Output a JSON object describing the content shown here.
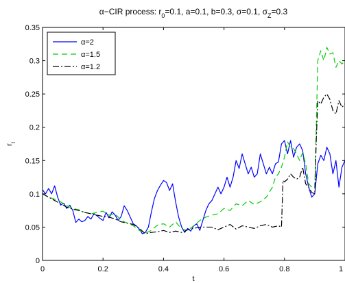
{
  "chart_data": {
    "type": "line",
    "title_parts": [
      {
        "t": "α−CIR process: r",
        "sub": false
      },
      {
        "t": "0",
        "sub": true
      },
      {
        "t": "=0.1, a=0.1, b=0.3, σ=0.1, σ",
        "sub": false
      },
      {
        "t": "Z",
        "sub": true
      },
      {
        "t": "=0.3",
        "sub": false
      }
    ],
    "xlabel": "t",
    "ylabel_main": "r",
    "ylabel_sub": "t",
    "xlim": [
      0,
      1
    ],
    "ylim": [
      0,
      0.35
    ],
    "x_ticks": [
      0,
      0.2,
      0.4,
      0.6,
      0.8,
      1
    ],
    "x_tick_labels": [
      "0",
      "0.2",
      "0.4",
      "0.6",
      "0.8",
      "1"
    ],
    "y_ticks": [
      0,
      0.05,
      0.1,
      0.15,
      0.2,
      0.25,
      0.3,
      0.35
    ],
    "y_tick_labels": [
      "0",
      "0.05",
      "0.1",
      "0.15",
      "0.2",
      "0.25",
      "0.3",
      "0.35"
    ],
    "grid": false,
    "legend_position": "top-left",
    "series": [
      {
        "name": "α=2",
        "color": "#0000ff",
        "dash": "solid",
        "points": [
          [
            0,
            0.106
          ],
          [
            0.01,
            0.1
          ],
          [
            0.02,
            0.108
          ],
          [
            0.03,
            0.1
          ],
          [
            0.04,
            0.112
          ],
          [
            0.05,
            0.095
          ],
          [
            0.06,
            0.083
          ],
          [
            0.07,
            0.086
          ],
          [
            0.08,
            0.078
          ],
          [
            0.09,
            0.083
          ],
          [
            0.1,
            0.075
          ],
          [
            0.11,
            0.057
          ],
          [
            0.12,
            0.062
          ],
          [
            0.13,
            0.058
          ],
          [
            0.14,
            0.06
          ],
          [
            0.15,
            0.066
          ],
          [
            0.16,
            0.062
          ],
          [
            0.17,
            0.07
          ],
          [
            0.18,
            0.067
          ],
          [
            0.19,
            0.063
          ],
          [
            0.2,
            0.06
          ],
          [
            0.21,
            0.072
          ],
          [
            0.22,
            0.064
          ],
          [
            0.23,
            0.073
          ],
          [
            0.24,
            0.068
          ],
          [
            0.25,
            0.06
          ],
          [
            0.26,
            0.066
          ],
          [
            0.27,
            0.082
          ],
          [
            0.28,
            0.075
          ],
          [
            0.29,
            0.065
          ],
          [
            0.3,
            0.055
          ],
          [
            0.31,
            0.052
          ],
          [
            0.32,
            0.047
          ],
          [
            0.33,
            0.04
          ],
          [
            0.34,
            0.042
          ],
          [
            0.35,
            0.05
          ],
          [
            0.36,
            0.073
          ],
          [
            0.37,
            0.093
          ],
          [
            0.38,
            0.105
          ],
          [
            0.39,
            0.113
          ],
          [
            0.4,
            0.12
          ],
          [
            0.41,
            0.117
          ],
          [
            0.42,
            0.105
          ],
          [
            0.43,
            0.115
          ],
          [
            0.44,
            0.088
          ],
          [
            0.45,
            0.065
          ],
          [
            0.46,
            0.05
          ],
          [
            0.47,
            0.042
          ],
          [
            0.48,
            0.048
          ],
          [
            0.49,
            0.044
          ],
          [
            0.5,
            0.052
          ],
          [
            0.51,
            0.055
          ],
          [
            0.52,
            0.045
          ],
          [
            0.53,
            0.06
          ],
          [
            0.54,
            0.075
          ],
          [
            0.55,
            0.085
          ],
          [
            0.56,
            0.09
          ],
          [
            0.57,
            0.1
          ],
          [
            0.58,
            0.11
          ],
          [
            0.59,
            0.1
          ],
          [
            0.6,
            0.11
          ],
          [
            0.61,
            0.125
          ],
          [
            0.62,
            0.11
          ],
          [
            0.63,
            0.125
          ],
          [
            0.64,
            0.15
          ],
          [
            0.65,
            0.138
          ],
          [
            0.66,
            0.16
          ],
          [
            0.67,
            0.145
          ],
          [
            0.68,
            0.13
          ],
          [
            0.69,
            0.14
          ],
          [
            0.7,
            0.125
          ],
          [
            0.71,
            0.13
          ],
          [
            0.72,
            0.16
          ],
          [
            0.73,
            0.145
          ],
          [
            0.74,
            0.13
          ],
          [
            0.75,
            0.14
          ],
          [
            0.76,
            0.13
          ],
          [
            0.77,
            0.145
          ],
          [
            0.78,
            0.148
          ],
          [
            0.79,
            0.175
          ],
          [
            0.8,
            0.18
          ],
          [
            0.81,
            0.16
          ],
          [
            0.82,
            0.18
          ],
          [
            0.83,
            0.155
          ],
          [
            0.84,
            0.17
          ],
          [
            0.85,
            0.175
          ],
          [
            0.86,
            0.165
          ],
          [
            0.87,
            0.13
          ],
          [
            0.88,
            0.11
          ],
          [
            0.89,
            0.095
          ],
          [
            0.9,
            0.1
          ],
          [
            0.91,
            0.145
          ],
          [
            0.92,
            0.158
          ],
          [
            0.93,
            0.15
          ],
          [
            0.94,
            0.17
          ],
          [
            0.95,
            0.16
          ],
          [
            0.96,
            0.13
          ],
          [
            0.97,
            0.15
          ],
          [
            0.98,
            0.11
          ],
          [
            0.99,
            0.14
          ],
          [
            1,
            0.15
          ]
        ]
      },
      {
        "name": "α=1.5",
        "color": "#00cc00",
        "dash": "8,5",
        "points": [
          [
            0,
            0.1
          ],
          [
            0.02,
            0.095
          ],
          [
            0.04,
            0.092
          ],
          [
            0.06,
            0.088
          ],
          [
            0.08,
            0.082
          ],
          [
            0.1,
            0.078
          ],
          [
            0.12,
            0.076
          ],
          [
            0.14,
            0.072
          ],
          [
            0.16,
            0.07
          ],
          [
            0.18,
            0.072
          ],
          [
            0.2,
            0.074
          ],
          [
            0.22,
            0.068
          ],
          [
            0.24,
            0.07
          ],
          [
            0.26,
            0.06
          ],
          [
            0.28,
            0.056
          ],
          [
            0.3,
            0.052
          ],
          [
            0.32,
            0.045
          ],
          [
            0.34,
            0.041
          ],
          [
            0.36,
            0.045
          ],
          [
            0.38,
            0.053
          ],
          [
            0.4,
            0.055
          ],
          [
            0.42,
            0.05
          ],
          [
            0.44,
            0.058
          ],
          [
            0.46,
            0.047
          ],
          [
            0.48,
            0.045
          ],
          [
            0.5,
            0.052
          ],
          [
            0.52,
            0.06
          ],
          [
            0.54,
            0.065
          ],
          [
            0.56,
            0.068
          ],
          [
            0.58,
            0.07
          ],
          [
            0.6,
            0.078
          ],
          [
            0.62,
            0.075
          ],
          [
            0.64,
            0.085
          ],
          [
            0.66,
            0.082
          ],
          [
            0.68,
            0.09
          ],
          [
            0.7,
            0.084
          ],
          [
            0.72,
            0.088
          ],
          [
            0.74,
            0.095
          ],
          [
            0.76,
            0.11
          ],
          [
            0.77,
            0.125
          ],
          [
            0.78,
            0.13
          ],
          [
            0.79,
            0.14
          ],
          [
            0.8,
            0.155
          ],
          [
            0.81,
            0.178
          ],
          [
            0.82,
            0.17
          ],
          [
            0.83,
            0.168
          ],
          [
            0.84,
            0.16
          ],
          [
            0.85,
            0.15
          ],
          [
            0.86,
            0.162
          ],
          [
            0.87,
            0.145
          ],
          [
            0.88,
            0.115
          ],
          [
            0.89,
            0.11
          ],
          [
            0.9,
            0.108
          ],
          [
            0.905,
            0.2
          ],
          [
            0.91,
            0.3
          ],
          [
            0.92,
            0.315
          ],
          [
            0.93,
            0.3
          ],
          [
            0.94,
            0.32
          ],
          [
            0.95,
            0.31
          ],
          [
            0.96,
            0.312
          ],
          [
            0.97,
            0.29
          ],
          [
            0.98,
            0.3
          ],
          [
            0.99,
            0.295
          ],
          [
            1,
            0.3
          ]
        ]
      },
      {
        "name": "α=1.2",
        "color": "#000000",
        "dash": "9,3,2,3",
        "points": [
          [
            0,
            0.1
          ],
          [
            0.02,
            0.095
          ],
          [
            0.04,
            0.09
          ],
          [
            0.06,
            0.085
          ],
          [
            0.08,
            0.08
          ],
          [
            0.1,
            0.077
          ],
          [
            0.12,
            0.075
          ],
          [
            0.14,
            0.072
          ],
          [
            0.16,
            0.07
          ],
          [
            0.18,
            0.068
          ],
          [
            0.2,
            0.066
          ],
          [
            0.22,
            0.065
          ],
          [
            0.24,
            0.062
          ],
          [
            0.26,
            0.058
          ],
          [
            0.28,
            0.056
          ],
          [
            0.3,
            0.054
          ],
          [
            0.32,
            0.048
          ],
          [
            0.34,
            0.04
          ],
          [
            0.36,
            0.042
          ],
          [
            0.38,
            0.043
          ],
          [
            0.4,
            0.045
          ],
          [
            0.42,
            0.042
          ],
          [
            0.44,
            0.044
          ],
          [
            0.46,
            0.042
          ],
          [
            0.48,
            0.046
          ],
          [
            0.5,
            0.048
          ],
          [
            0.52,
            0.05
          ],
          [
            0.54,
            0.05
          ],
          [
            0.56,
            0.05
          ],
          [
            0.58,
            0.046
          ],
          [
            0.6,
            0.05
          ],
          [
            0.62,
            0.054
          ],
          [
            0.64,
            0.047
          ],
          [
            0.66,
            0.052
          ],
          [
            0.68,
            0.05
          ],
          [
            0.7,
            0.048
          ],
          [
            0.72,
            0.052
          ],
          [
            0.74,
            0.054
          ],
          [
            0.76,
            0.05
          ],
          [
            0.78,
            0.052
          ],
          [
            0.79,
            0.05
          ],
          [
            0.795,
            0.12
          ],
          [
            0.8,
            0.118
          ],
          [
            0.81,
            0.122
          ],
          [
            0.82,
            0.13
          ],
          [
            0.83,
            0.125
          ],
          [
            0.84,
            0.122
          ],
          [
            0.85,
            0.125
          ],
          [
            0.86,
            0.14
          ],
          [
            0.87,
            0.115
          ],
          [
            0.88,
            0.11
          ],
          [
            0.89,
            0.102
          ],
          [
            0.9,
            0.1
          ],
          [
            0.905,
            0.18
          ],
          [
            0.91,
            0.24
          ],
          [
            0.92,
            0.235
          ],
          [
            0.93,
            0.245
          ],
          [
            0.94,
            0.25
          ],
          [
            0.95,
            0.242
          ],
          [
            0.96,
            0.225
          ],
          [
            0.97,
            0.22
          ],
          [
            0.98,
            0.24
          ],
          [
            0.99,
            0.23
          ],
          [
            1,
            0.235
          ]
        ]
      }
    ]
  }
}
